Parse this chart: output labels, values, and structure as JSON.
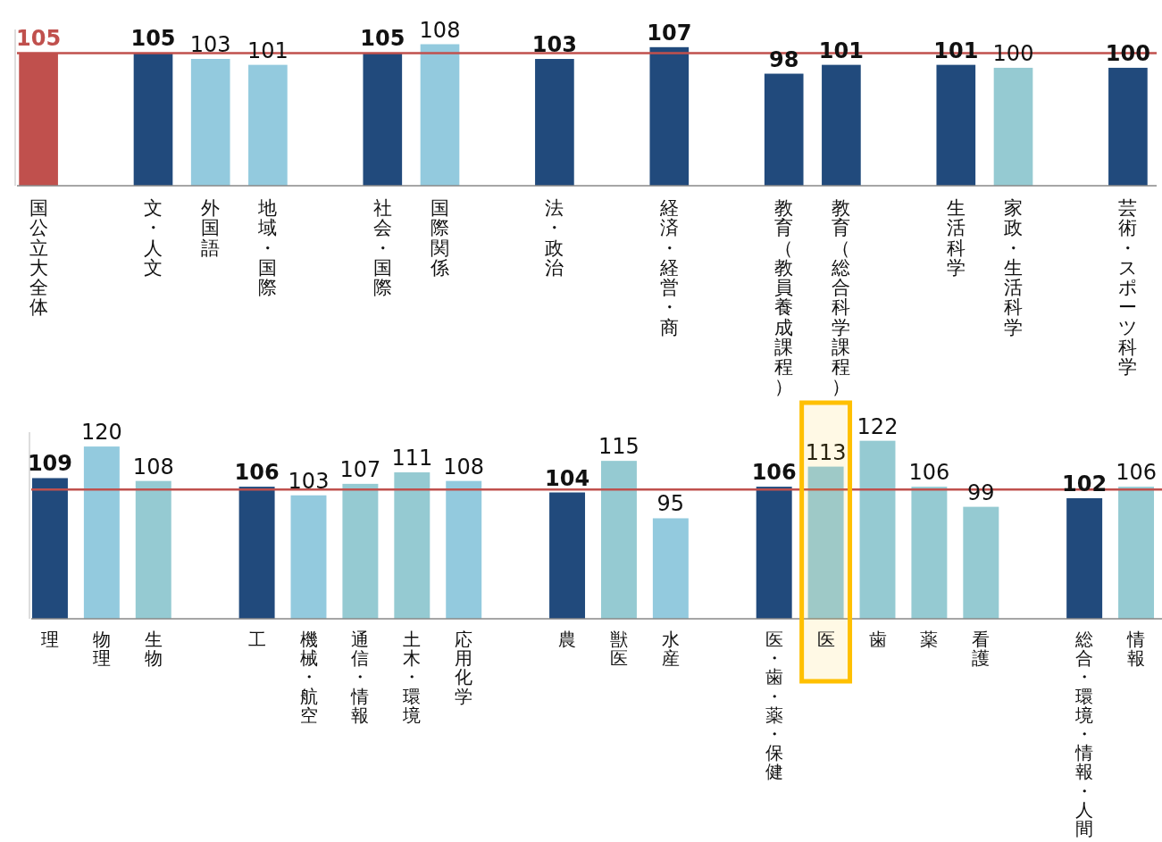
{
  "chart_data": [
    {
      "type": "bar",
      "categories": [
        "国公立大全体",
        null,
        "文・人文",
        "外国語",
        "地域・国際",
        null,
        "社会・国際",
        "国際関係",
        null,
        "法・政治",
        null,
        "経済・経営・商",
        null,
        "教育（教員養成課程）",
        "教育（総合科学課程）",
        null,
        "生活科学",
        "家政・生活科学",
        null,
        "芸術・スポーツ科学"
      ],
      "values": [
        105,
        null,
        105,
        103,
        101,
        null,
        105,
        108,
        null,
        103,
        null,
        107,
        null,
        98,
        101,
        null,
        101,
        100,
        null,
        100
      ],
      "colors": [
        "#c0504d",
        null,
        "#214a7c",
        "#93cade",
        "#93cade",
        null,
        "#214a7c",
        "#93cade",
        null,
        "#214a7c",
        null,
        "#214a7c",
        null,
        "#214a7c",
        "#214a7c",
        null,
        "#214a7c",
        "#95cad2",
        null,
        "#214a7c"
      ],
      "ylim": [
        60,
        113
      ],
      "data_labels": true,
      "tick_labels": "x",
      "ref_lines": [
        {
          "axis": "y",
          "value": 105,
          "color": "#c0504d"
        }
      ]
    },
    {
      "type": "bar",
      "categories": [
        "理",
        "物理",
        "生物",
        null,
        "工",
        "機械・航空",
        "通信・情報",
        "土木・環境",
        "応用化学",
        null,
        "農",
        "獣医",
        "水産",
        null,
        "医・歯・薬・保健",
        "医",
        "歯",
        "薬",
        "看護",
        null,
        "総合・環境・情報・人間",
        "情報"
      ],
      "values": [
        109,
        120,
        108,
        null,
        106,
        103,
        107,
        111,
        108,
        null,
        104,
        115,
        95,
        null,
        106,
        113,
        122,
        106,
        99,
        null,
        102,
        106
      ],
      "colors": [
        "#214a7c",
        "#93cade",
        "#95cad2",
        null,
        "#214a7c",
        "#93cade",
        "#95cad2",
        "#95cad2",
        "#93cade",
        null,
        "#214a7c",
        "#95cad2",
        "#93cade",
        null,
        "#214a7c",
        "#93cade",
        "#95cad2",
        "#95cad2",
        "#95cad2",
        null,
        "#214a7c",
        "#95cad2"
      ],
      "ylim": [
        60,
        125
      ],
      "data_labels": true,
      "tick_labels": "x",
      "ref_lines": [
        {
          "axis": "y",
          "value": 105,
          "color": "#c0504d"
        }
      ],
      "bands": [
        {
          "axis": "x",
          "from": "医",
          "to": "医",
          "color": "#ffc000"
        }
      ]
    }
  ]
}
